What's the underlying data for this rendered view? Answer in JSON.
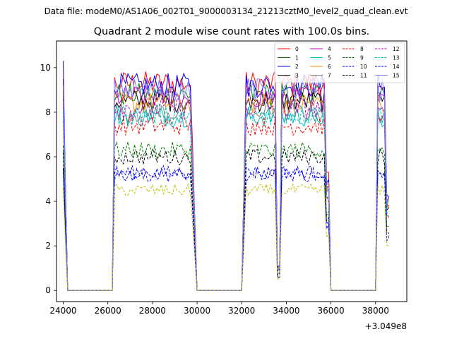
{
  "chart_data": {
    "type": "line",
    "suptitle": "Data file: modeM0/AS1A06_002T01_9000003134_21213cztM0_level2_quad_clean.evt",
    "title": "Quadrant 2 module wise count rates with 100.0s bins.",
    "xlabel": "",
    "ylabel": "",
    "x_offset_label": "+3.049e8",
    "xlim": [
      23700,
      39400
    ],
    "ylim": [
      -0.5,
      11.2
    ],
    "x_ticks": [
      24000,
      26000,
      28000,
      30000,
      32000,
      34000,
      36000,
      38000
    ],
    "x_tick_labels": [
      "24000",
      "26000",
      "28000",
      "30000",
      "32000",
      "34000",
      "36000",
      "38000"
    ],
    "y_ticks": [
      0,
      2,
      4,
      6,
      8,
      10
    ],
    "y_tick_labels": [
      "0",
      "2",
      "4",
      "6",
      "8",
      "10"
    ],
    "grid": false,
    "legend_placement": "top-right",
    "legend_columns": 4,
    "x_start": 24000,
    "bin_width": 100,
    "n_bins": 147,
    "series": [
      {
        "name": "0",
        "color": "#ff0000",
        "dash": "solid",
        "level": 9.3,
        "initial": 9.5
      },
      {
        "name": "1",
        "color": "#008000",
        "dash": "solid",
        "level": 8.8,
        "initial": 9.0
      },
      {
        "name": "2",
        "color": "#0000ff",
        "dash": "solid",
        "level": 9.2,
        "initial": 10.3
      },
      {
        "name": "3",
        "color": "#000000",
        "dash": "solid",
        "level": 8.5,
        "initial": 8.6
      },
      {
        "name": "4",
        "color": "#bf00bf",
        "dash": "solid",
        "level": 8.7,
        "initial": 9.0
      },
      {
        "name": "5",
        "color": "#00bfbf",
        "dash": "solid",
        "level": 7.8,
        "initial": 8.0
      },
      {
        "name": "6",
        "color": "#ff8c00",
        "dash": "solid",
        "level": 8.4,
        "initial": 8.5
      },
      {
        "name": "7",
        "color": "#808080",
        "dash": "solid",
        "level": 8.0,
        "initial": 8.2
      },
      {
        "name": "8",
        "color": "#ff0000",
        "dash": "dashed",
        "level": 7.4,
        "initial": 7.6
      },
      {
        "name": "9",
        "color": "#008000",
        "dash": "dashed",
        "level": 6.3,
        "initial": 6.5
      },
      {
        "name": "10",
        "color": "#0000ff",
        "dash": "dashed",
        "level": 5.3,
        "initial": 5.5
      },
      {
        "name": "11",
        "color": "#000000",
        "dash": "dashed",
        "level": 6.0,
        "initial": 6.2
      },
      {
        "name": "12",
        "color": "#bf00bf",
        "dash": "dashed",
        "level": 8.2,
        "initial": 8.4
      },
      {
        "name": "13",
        "color": "#00bfbf",
        "dash": "dashed",
        "level": 7.9,
        "initial": 8.1
      },
      {
        "name": "14",
        "color": "#0000ff",
        "dash": "dashed",
        "level": 5.2,
        "initial": 5.4
      },
      {
        "name": "15",
        "color": "#8080ff",
        "dash": "solid",
        "level": 9.0,
        "initial": 9.2
      },
      {
        "name": "",
        "color": "#bfbf00",
        "dash": "dashed",
        "level": 4.5,
        "initial": 4.6
      }
    ]
  }
}
